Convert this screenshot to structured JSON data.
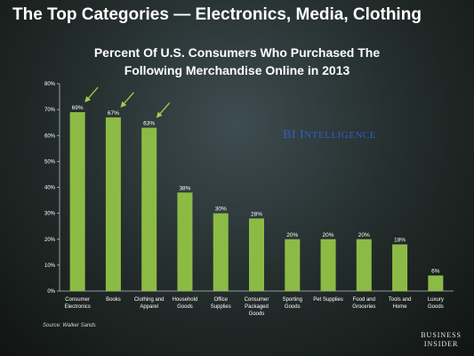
{
  "headline": "The Top Categories — Electronics, Media, Clothing",
  "watermark": "BI Intelligence",
  "source": "Source: Walker Sands",
  "brand": {
    "line1": "BUSINESS",
    "line2": "INSIDER"
  },
  "colors": {
    "bar": "#8cbb45",
    "arrow": "#9fd04c",
    "axis": "#b9c2c2",
    "watermark": "#2f5fc4"
  },
  "chart_data": {
    "type": "bar",
    "title_lines": [
      "Percent Of U.S. Consumers Who Purchased The",
      "Following Merchandise Online in 2013"
    ],
    "categories": [
      [
        "Consumer",
        "Electronics"
      ],
      [
        "Books"
      ],
      [
        "Clothing and",
        "Apparel"
      ],
      [
        "Household",
        "Goods"
      ],
      [
        "Office",
        "Supplies"
      ],
      [
        "Consumer",
        "Packaged",
        "Goods"
      ],
      [
        "Sporting",
        "Goods"
      ],
      [
        "Pet Supplies"
      ],
      [
        "Food and",
        "Groceries"
      ],
      [
        "Tools and",
        "Home"
      ],
      [
        "Luxury",
        "Goods"
      ]
    ],
    "values": [
      69,
      67,
      63,
      38,
      30,
      28,
      20,
      20,
      20,
      18,
      6
    ],
    "data_labels": [
      "69%",
      "67%",
      "63%",
      "38%",
      "30%",
      "28%",
      "20%",
      "20%",
      "20%",
      "18%",
      "6%"
    ],
    "highlighted": [
      0,
      1,
      2
    ],
    "ylim": [
      0,
      80
    ],
    "yticks": [
      "0%",
      "10%",
      "20%",
      "30%",
      "40%",
      "50%",
      "60%",
      "70%",
      "80%"
    ],
    "xlabel": "",
    "ylabel": "",
    "grid": false,
    "legend": "none"
  }
}
